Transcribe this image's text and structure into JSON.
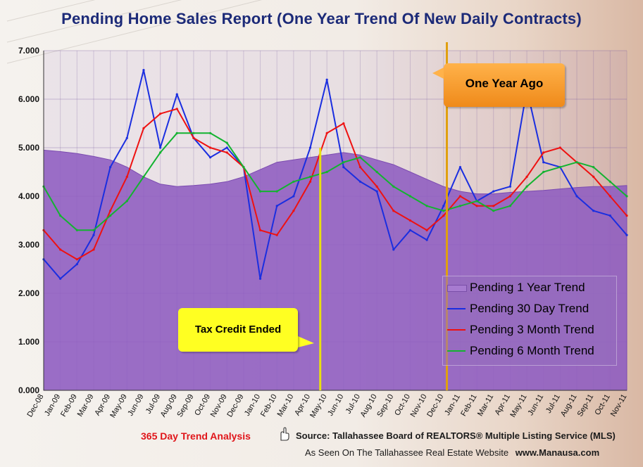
{
  "title": "Pending Home Sales Report (One Year Trend Of New Daily Contracts)",
  "chart_data": {
    "type": "line",
    "title": "Pending Home Sales Report (One Year Trend Of New Daily Contracts)",
    "ylim": [
      0,
      7
    ],
    "yticks": [
      "0.000",
      "1.000",
      "2.000",
      "3.000",
      "4.000",
      "5.000",
      "6.000",
      "7.000"
    ],
    "xticks": [
      "Dec-08",
      "Jan-09",
      "Feb-09",
      "Mar-09",
      "Apr-09",
      "May-09",
      "Jun-09",
      "Jul-09",
      "Aug-09",
      "Sep-09",
      "Oct-09",
      "Nov-09",
      "Dec-09",
      "Jan-10",
      "Feb-10",
      "Mar-10",
      "Apr-10",
      "May-10",
      "Jun-10",
      "Jul-10",
      "Aug-10",
      "Sep-10",
      "Oct-10",
      "Nov-10",
      "Dec-10",
      "Jan-11",
      "Feb-11",
      "Mar-11",
      "Apr-11",
      "May-11",
      "Jun-11",
      "Jul-11",
      "Aug-11",
      "Sep-11",
      "Oct-11",
      "Nov-11"
    ],
    "grid": true,
    "legend_position": "bottom-right",
    "series": [
      {
        "name": "Pending 1 Year Trend",
        "kind": "area",
        "color": "#8e5cc0",
        "values": [
          4.95,
          4.92,
          4.88,
          4.82,
          4.75,
          4.6,
          4.4,
          4.25,
          4.2,
          4.22,
          4.25,
          4.3,
          4.4,
          4.55,
          4.7,
          4.75,
          4.8,
          4.85,
          4.9,
          4.85,
          4.75,
          4.65,
          4.5,
          4.35,
          4.2,
          4.1,
          4.05,
          4.05,
          4.08,
          4.1,
          4.12,
          4.15,
          4.18,
          4.2,
          4.2,
          4.22
        ]
      },
      {
        "name": "Pending 30 Day Trend",
        "kind": "line",
        "color": "#1a2ee0",
        "values": [
          2.7,
          2.3,
          2.6,
          3.2,
          4.6,
          5.2,
          6.6,
          5.0,
          6.1,
          5.2,
          4.8,
          5.0,
          4.6,
          2.3,
          3.8,
          4.0,
          5.0,
          6.4,
          4.6,
          4.3,
          4.1,
          2.9,
          3.3,
          3.1,
          3.8,
          4.6,
          3.9,
          4.1,
          4.2,
          6.2,
          4.7,
          4.6,
          4.0,
          3.7,
          3.6,
          3.2
        ]
      },
      {
        "name": "Pending 3 Month Trend",
        "kind": "line",
        "color": "#ee1111",
        "values": [
          3.3,
          2.9,
          2.7,
          2.9,
          3.7,
          4.4,
          5.4,
          5.7,
          5.8,
          5.2,
          5.0,
          4.9,
          4.6,
          3.3,
          3.2,
          3.7,
          4.3,
          5.3,
          5.5,
          4.6,
          4.2,
          3.7,
          3.5,
          3.3,
          3.6,
          4.0,
          3.8,
          3.8,
          4.0,
          4.4,
          4.9,
          5.0,
          4.7,
          4.4,
          4.0,
          3.6
        ]
      },
      {
        "name": "Pending 6 Month Trend",
        "kind": "line",
        "color": "#13b330",
        "values": [
          4.2,
          3.6,
          3.3,
          3.3,
          3.6,
          3.9,
          4.4,
          4.9,
          5.3,
          5.3,
          5.3,
          5.1,
          4.6,
          4.1,
          4.1,
          4.3,
          4.4,
          4.5,
          4.7,
          4.8,
          4.5,
          4.2,
          4.0,
          3.8,
          3.7,
          3.8,
          3.9,
          3.7,
          3.8,
          4.2,
          4.5,
          4.6,
          4.7,
          4.6,
          4.3,
          4.0
        ]
      }
    ],
    "annotations": [
      {
        "label": "Tax Credit Ended",
        "month_index": 16.6,
        "color": "#ffff22"
      },
      {
        "label": "One Year Ago",
        "month_index": 24.2,
        "color": "#f39a2a"
      }
    ]
  },
  "callouts": {
    "tax_credit": "Tax Credit Ended",
    "year_ago": "One Year Ago"
  },
  "legend": {
    "items": [
      {
        "label": "Pending 1 Year Trend"
      },
      {
        "label": "Pending 30 Day Trend"
      },
      {
        "label": "Pending 3 Month Trend"
      },
      {
        "label": "Pending 6 Month Trend"
      }
    ]
  },
  "footer": {
    "analysis": "365 Day Trend Analysis",
    "source": "Source: Tallahassee Board of REALTORS® Multiple Listing Service (MLS)",
    "seen_prefix": "As Seen On The Tallahassee Real Estate Website",
    "seen_site": "www.Manausa.com"
  },
  "colors": {
    "title": "#1c2a78",
    "area": "#8e5cc0",
    "blue": "#1a2ee0",
    "red": "#ee1111",
    "green": "#13b330",
    "tax_line": "#e8e010",
    "year_line": "#e0a010"
  }
}
